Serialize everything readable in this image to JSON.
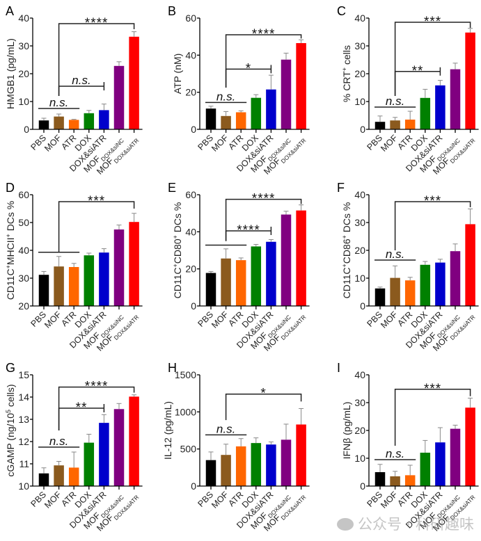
{
  "groups": [
    "PBS",
    "MOF",
    "ATR",
    "DOX",
    "DOX&siATR",
    "MOFDOX&siNC",
    "MOFDOX&siATR"
  ],
  "group_labels": [
    {
      "main": "PBS",
      "sub": ""
    },
    {
      "main": "MOF",
      "sub": ""
    },
    {
      "main": "ATR",
      "sub": ""
    },
    {
      "main": "DOX",
      "sub": ""
    },
    {
      "main": "DOX&siATR",
      "sub": ""
    },
    {
      "main": "MOF",
      "sub": "DOX&siNC"
    },
    {
      "main": "MOF",
      "sub": "DOX&siATR"
    }
  ],
  "colors": [
    "#000000",
    "#8B5A1E",
    "#FF6600",
    "#008000",
    "#0000CC",
    "#800080",
    "#FF0000"
  ],
  "watermark": "公众号 · 科研趣味",
  "chart_data": [
    {
      "panel": "A",
      "type": "bar",
      "ylabel": "HMGB1 (pg/mL)",
      "ylabel_parts": [
        [
          "HMGB1 (pg/mL)",
          ""
        ]
      ],
      "ylim": [
        0,
        40
      ],
      "yticks": [
        0,
        10,
        20,
        30,
        40
      ],
      "values": [
        3.2,
        4.6,
        3.4,
        5.8,
        6.9,
        22.8,
        33.3
      ],
      "errors": [
        0.8,
        0.9,
        0.2,
        1.0,
        2.2,
        1.5,
        1.8
      ],
      "brackets": [
        {
          "type": "line",
          "from": 0,
          "to": 2,
          "y": 7.5,
          "label": "n.s.",
          "italic": true
        },
        {
          "type": "bracket-open",
          "from": 1,
          "to": 4,
          "y": 15.5,
          "ystart": 12,
          "label": "n.s.",
          "italic": true
        },
        {
          "type": "bracket",
          "from": 1,
          "to": 6,
          "y": 38,
          "ystart": 12,
          "yend": 36,
          "label": "****",
          "italic": false
        }
      ]
    },
    {
      "panel": "B",
      "type": "bar",
      "ylabel": "ATP (nM)",
      "ylim": [
        0,
        60
      ],
      "yticks": [
        0,
        20,
        40,
        60
      ],
      "values": [
        11.2,
        7.2,
        9.2,
        17.0,
        21.5,
        37.6,
        46.5
      ],
      "errors": [
        1.3,
        2.4,
        0.8,
        1.7,
        7.7,
        3.5,
        1.8
      ],
      "brackets": [
        {
          "type": "line",
          "from": 0,
          "to": 2,
          "y": 14.5,
          "label": "n.s.",
          "italic": true
        },
        {
          "type": "bracket-open",
          "from": 1,
          "to": 4,
          "y": 32.5,
          "ystart": 22.5,
          "label": "*",
          "italic": false
        },
        {
          "type": "bracket",
          "from": 1,
          "to": 6,
          "y": 51,
          "ystart": 22.5,
          "yend": 49,
          "label": "****",
          "italic": false
        }
      ]
    },
    {
      "panel": "C",
      "type": "bar",
      "ylabel": "% CRT+ cells",
      "ylim": [
        0,
        40
      ],
      "yticks": [
        0,
        10,
        20,
        30,
        40
      ],
      "values": [
        2.7,
        3.2,
        3.5,
        11.3,
        15.8,
        21.6,
        34.8
      ],
      "errors": [
        2.1,
        1.1,
        3.0,
        3.1,
        1.8,
        2.2,
        1.5
      ],
      "brackets": [
        {
          "type": "line",
          "from": 0,
          "to": 2,
          "y": 8.0,
          "label": "n.s.",
          "italic": true
        },
        {
          "type": "bracket-open",
          "from": 1,
          "to": 4,
          "y": 20.8,
          "ystart": 12,
          "label": "**",
          "italic": false
        },
        {
          "type": "bracket",
          "from": 1,
          "to": 6,
          "y": 38.5,
          "ystart": 12,
          "yend": 36.5,
          "label": "***",
          "italic": false
        }
      ]
    },
    {
      "panel": "D",
      "type": "bar",
      "ylabel": "CD11C+MHCII+ DCs %",
      "ylim": [
        20,
        60
      ],
      "yticks": [
        20,
        30,
        40,
        50,
        60
      ],
      "values": [
        31.2,
        34.2,
        34.0,
        38.2,
        39.2,
        47.5,
        50.2
      ],
      "errors": [
        1.2,
        3.6,
        1.3,
        0.8,
        1.4,
        1.6,
        3.1
      ],
      "brackets": [
        {
          "type": "line",
          "from": 0,
          "to": 2,
          "y": 39.3,
          "label": "",
          "italic": false
        },
        {
          "type": "bracket",
          "from": 1,
          "to": 6,
          "y": 57.5,
          "ystart": 39.3,
          "yend": 55,
          "label": "***",
          "italic": false
        }
      ]
    },
    {
      "panel": "E",
      "type": "bar",
      "ylabel": "CD11C+CD80+ DCs %",
      "ylim": [
        0,
        60
      ],
      "yticks": [
        0,
        20,
        40,
        60
      ],
      "values": [
        17.8,
        25.6,
        24.7,
        32.1,
        34.6,
        49.3,
        51.5
      ],
      "errors": [
        0.8,
        5.2,
        1.2,
        1.1,
        1.2,
        1.8,
        3.0
      ],
      "brackets": [
        {
          "type": "line",
          "from": 0,
          "to": 2,
          "y": 32.8,
          "label": "",
          "italic": false
        },
        {
          "type": "bracket-open",
          "from": 1,
          "to": 4,
          "y": 40.5,
          "ystart": 35,
          "label": "****",
          "italic": false
        },
        {
          "type": "bracket",
          "from": 1,
          "to": 6,
          "y": 57.5,
          "ystart": 35,
          "yend": 55,
          "label": "****",
          "italic": false
        }
      ]
    },
    {
      "panel": "F",
      "type": "bar",
      "ylabel": "CD11C+CD86+ DCs %",
      "ylim": [
        0,
        40
      ],
      "yticks": [
        0,
        10,
        20,
        30,
        40
      ],
      "values": [
        6.3,
        10.1,
        9.2,
        14.8,
        15.6,
        19.7,
        29.4
      ],
      "errors": [
        0.5,
        4.3,
        1.1,
        1.2,
        1.2,
        2.6,
        5.5
      ],
      "brackets": [
        {
          "type": "line",
          "from": 0,
          "to": 2,
          "y": 16.5,
          "label": "n.s.",
          "italic": true
        },
        {
          "type": "bracket",
          "from": 1,
          "to": 6,
          "y": 37.5,
          "ystart": 20,
          "yend": 35.5,
          "label": "***",
          "italic": false
        }
      ]
    },
    {
      "panel": "G",
      "type": "bar",
      "ylabel": "cGAMP (ng/10^5 cells)",
      "ylim": [
        10,
        15
      ],
      "yticks": [
        10,
        11,
        12,
        13,
        14,
        15
      ],
      "values": [
        10.57,
        10.93,
        10.83,
        11.95,
        12.84,
        13.46,
        14.02
      ],
      "errors": [
        0.25,
        0.18,
        0.7,
        0.38,
        0.37,
        0.25,
        0.08
      ],
      "brackets": [
        {
          "type": "line",
          "from": 0,
          "to": 2,
          "y": 11.75,
          "label": "n.s.",
          "italic": true
        },
        {
          "type": "bracket-open",
          "from": 1,
          "to": 4,
          "y": 13.5,
          "ystart": 12.5,
          "label": "**",
          "italic": false
        },
        {
          "type": "bracket",
          "from": 1,
          "to": 6,
          "y": 14.45,
          "ystart": 12.5,
          "yend": 14.2,
          "label": "****",
          "italic": false
        }
      ]
    },
    {
      "panel": "H",
      "type": "bar",
      "ylabel": "IL-12 (pg/mL)",
      "ylim": [
        0,
        1500
      ],
      "yticks": [
        0,
        500,
        1000,
        1500
      ],
      "values": [
        350,
        420,
        535,
        580,
        560,
        625,
        830
      ],
      "errors": [
        110,
        145,
        105,
        70,
        35,
        210,
        215
      ],
      "brackets": [
        {
          "type": "line",
          "from": 0,
          "to": 2,
          "y": 690,
          "label": "n.s.",
          "italic": true
        },
        {
          "type": "bracket",
          "from": 1,
          "to": 6,
          "y": 1240,
          "ystart": 890,
          "yend": 1140,
          "label": "*",
          "italic": false
        }
      ]
    },
    {
      "panel": "I",
      "type": "bar",
      "ylabel": "IFNβ (pg/mL)",
      "ylim": [
        0,
        40
      ],
      "yticks": [
        0,
        10,
        20,
        30,
        40
      ],
      "values": [
        5.0,
        3.5,
        3.9,
        12.0,
        15.7,
        20.6,
        28.2
      ],
      "errors": [
        2.8,
        1.8,
        3.6,
        4.4,
        5.3,
        1.3,
        3.4
      ],
      "brackets": [
        {
          "type": "line",
          "from": 0,
          "to": 2,
          "y": 9.5,
          "label": "n.s.",
          "italic": true
        },
        {
          "type": "bracket",
          "from": 1,
          "to": 6,
          "y": 34.8,
          "ystart": 14.5,
          "yend": 32.3,
          "label": "***",
          "italic": false
        }
      ]
    }
  ]
}
